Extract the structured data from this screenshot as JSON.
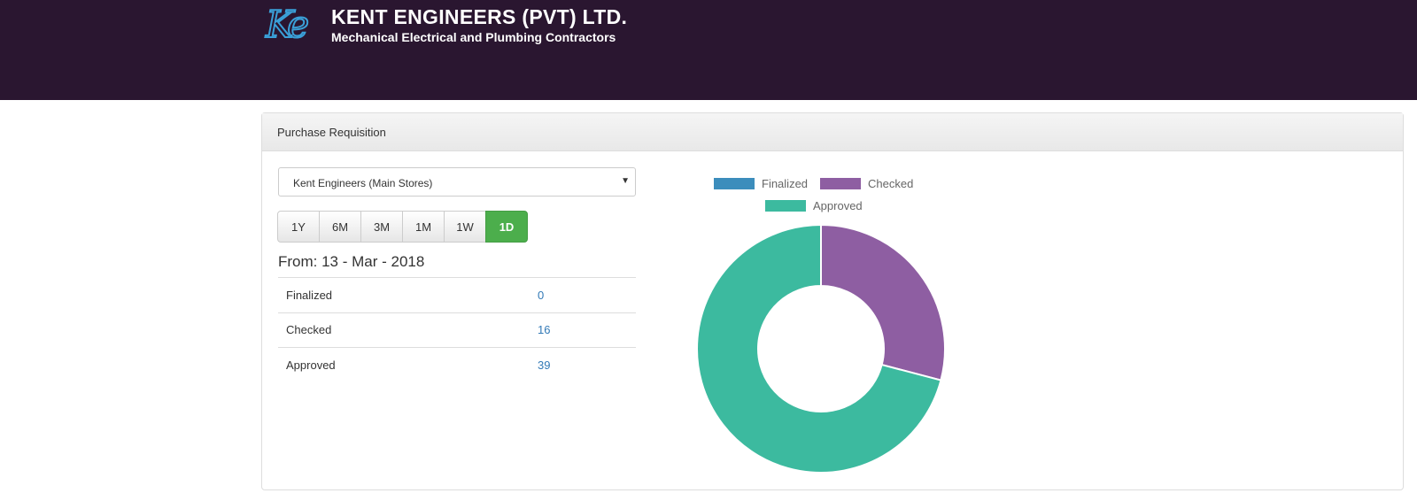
{
  "header": {
    "logo_text": "Ke",
    "title": "KENT ENGINEERS (PVT) LTD.",
    "subtitle": "Mechanical Electrical and Plumbing Contractors"
  },
  "panel": {
    "title": "Purchase Requisition",
    "store_select": "Kent Engineers (Main Stores)",
    "ranges": [
      "1Y",
      "6M",
      "3M",
      "1M",
      "1W",
      "1D"
    ],
    "active_range": "1D",
    "from_label": "From: 13 - Mar - 2018",
    "rows": [
      {
        "label": "Finalized",
        "value": "0"
      },
      {
        "label": "Checked",
        "value": "16"
      },
      {
        "label": "Approved",
        "value": "39"
      }
    ]
  },
  "chart_data": {
    "type": "pie",
    "donut": true,
    "categories": [
      "Finalized",
      "Checked",
      "Approved"
    ],
    "values": [
      0,
      16,
      39
    ],
    "colors": [
      "#3c8dbc",
      "#8e5ea2",
      "#3cba9f"
    ],
    "legend": "top"
  }
}
